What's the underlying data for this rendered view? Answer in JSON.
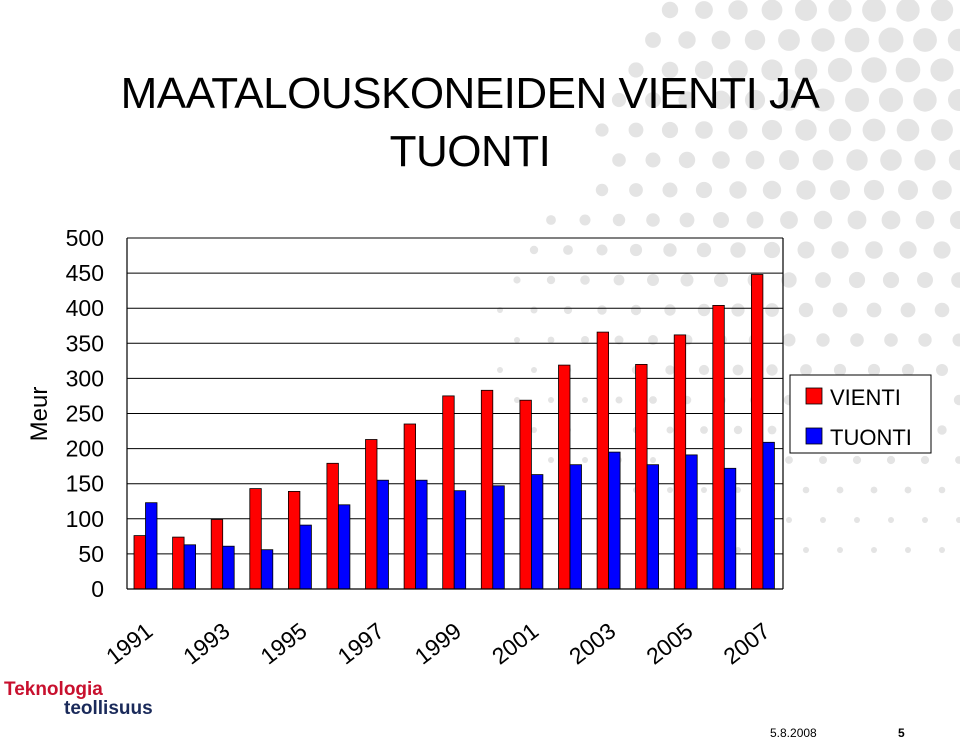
{
  "chart_data": {
    "type": "bar",
    "title": "MAATALOUSKONEIDEN VIENTI JA TUONTI",
    "title_lines": [
      "MAATALOUSKONEIDEN VIENTI JA",
      "TUONTI"
    ],
    "ylabel": "Meur",
    "xlabel": "",
    "ylim": [
      0,
      500
    ],
    "yticks": [
      0,
      50,
      100,
      150,
      200,
      250,
      300,
      350,
      400,
      450,
      500
    ],
    "categories": [
      "1991",
      "1992",
      "1993",
      "1994",
      "1995",
      "1996",
      "1997",
      "1998",
      "1999",
      "2000",
      "2001",
      "2002",
      "2003",
      "2004",
      "2005",
      "2006",
      "2007"
    ],
    "xtick_labels": [
      "1991",
      "1993",
      "1995",
      "1997",
      "1999",
      "2001",
      "2003",
      "2005",
      "2007"
    ],
    "grid": "horizontal",
    "legend_position": "right",
    "series": [
      {
        "name": "VIENTI",
        "color": "#ff0000",
        "values": [
          76,
          74,
          99,
          143,
          139,
          179,
          213,
          235,
          275,
          283,
          269,
          319,
          366,
          320,
          362,
          404,
          448
        ]
      },
      {
        "name": "TUONTI",
        "color": "#0000ff",
        "values": [
          123,
          63,
          61,
          56,
          91,
          120,
          155,
          155,
          140,
          147,
          163,
          177,
          195,
          177,
          191,
          172,
          209
        ]
      }
    ]
  },
  "footer": {
    "logo_line_1": "Teknologia",
    "logo_line_2": "teollisuus",
    "date": "5.8.2008",
    "page": "5"
  },
  "colors": {
    "logo_red": "#c8102e",
    "logo_navy": "#1a2a5a",
    "decor_gray": "#e4e4e4"
  }
}
